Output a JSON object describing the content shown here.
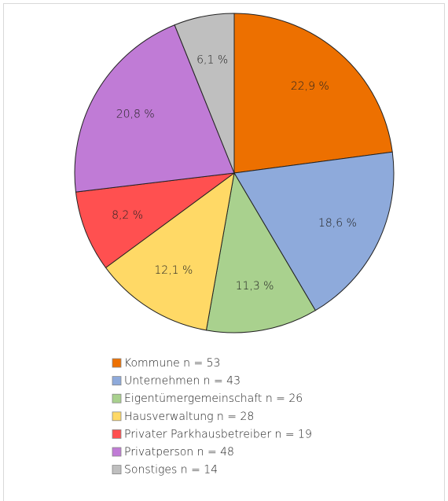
{
  "chart_data": {
    "type": "pie",
    "categories": [
      "Kommune n = 53",
      "Unternehmen n = 43",
      "Eigentümergemeinschaft n = 26",
      "Hausverwaltung n = 28",
      "Privater Parkhausbetreiber n = 19",
      "Privatperson n = 48",
      "Sonstiges n = 14"
    ],
    "values": [
      22.9,
      18.6,
      11.3,
      12.1,
      8.2,
      20.8,
      6.1
    ],
    "value_labels": [
      "22,9 %",
      "18,6 %",
      "11,3 %",
      "12,1 %",
      "8,2 %",
      "20,8 %",
      "6,1 %"
    ],
    "colors": [
      "#ed7000",
      "#8eaadb",
      "#a9d18e",
      "#ffd966",
      "#ff5050",
      "#c07bd6",
      "#bfbfbf"
    ],
    "legend": "bottom"
  }
}
